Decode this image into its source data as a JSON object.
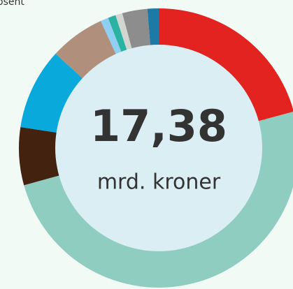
{
  "chart_data": {
    "type": "donut",
    "label": "osent",
    "center_value": "17,38",
    "center_unit": "mrd. kroner",
    "values": [
      20.8,
      49.9,
      6.7,
      9.4,
      6.4,
      0.9,
      0.9,
      0.8,
      2.9,
      1.3
    ],
    "colors": [
      "#e2231f",
      "#8ecdc0",
      "#43220f",
      "#0aa9dc",
      "#b08f7c",
      "#8fd0f2",
      "#2ab3a2",
      "#d3d6d0",
      "#8d8d8d",
      "#1d7aa6"
    ]
  }
}
